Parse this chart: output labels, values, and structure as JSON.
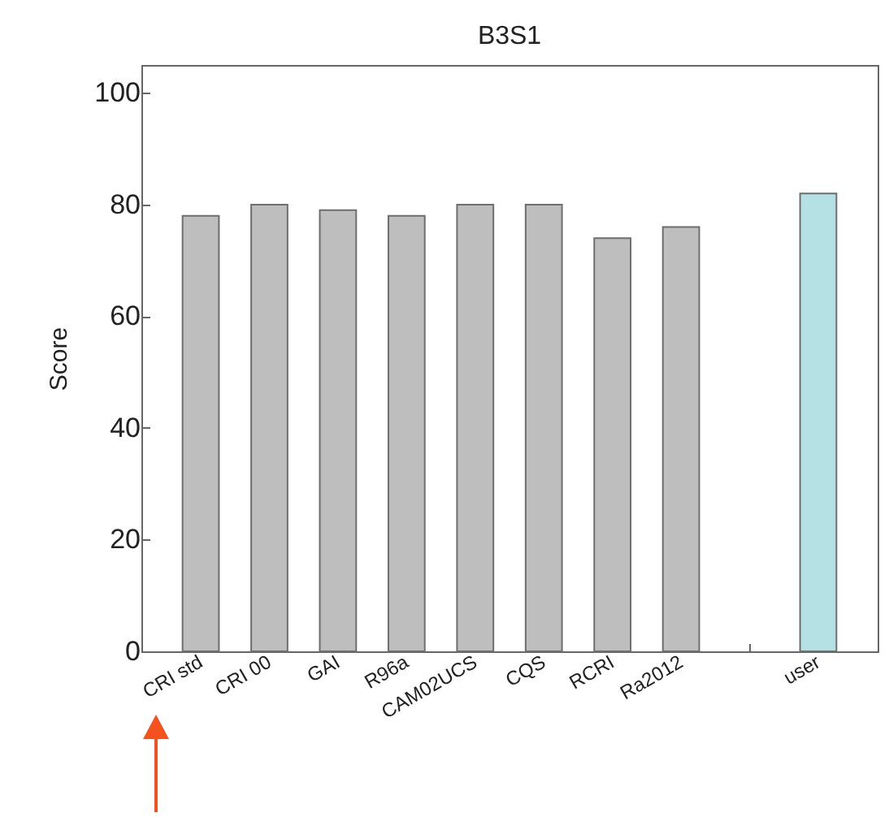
{
  "chart_data": {
    "type": "bar",
    "title": "B3S1",
    "ylabel": "Score",
    "categories": [
      "CRI std",
      "CRI 00",
      "GAI",
      "R96a",
      "CAM02UCS",
      "CQS",
      "RCRI",
      "Ra2012",
      null,
      "user"
    ],
    "values": [
      78,
      80,
      79,
      78,
      80,
      80,
      74,
      76,
      null,
      82
    ],
    "colors": [
      "#bebebe",
      "#bebebe",
      "#bebebe",
      "#bebebe",
      "#bebebe",
      "#bebebe",
      "#bebebe",
      "#bebebe",
      null,
      "#b5e0e4"
    ],
    "ylim": [
      0,
      105
    ],
    "yticks": [
      0,
      20,
      40,
      60,
      80,
      100
    ],
    "grid": false
  }
}
